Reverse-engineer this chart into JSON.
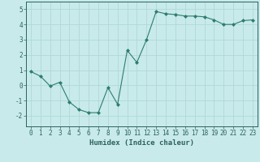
{
  "x": [
    0,
    1,
    2,
    3,
    4,
    5,
    6,
    7,
    8,
    9,
    10,
    11,
    12,
    13,
    14,
    15,
    16,
    17,
    18,
    19,
    20,
    21,
    22,
    23
  ],
  "y": [
    0.9,
    0.6,
    -0.05,
    0.2,
    -1.1,
    -1.6,
    -1.8,
    -1.8,
    -0.15,
    -1.25,
    2.3,
    1.5,
    3.0,
    4.85,
    4.7,
    4.65,
    4.55,
    4.55,
    4.5,
    4.3,
    4.0,
    4.0,
    4.25,
    4.3
  ],
  "line_color": "#2e7d6e",
  "marker": "D",
  "marker_size": 2.0,
  "bg_color": "#c8eaea",
  "grid_color": "#b0d8d8",
  "xlabel": "Humidex (Indice chaleur)",
  "xlim": [
    -0.5,
    23.5
  ],
  "ylim": [
    -2.7,
    5.5
  ],
  "yticks": [
    -2,
    -1,
    0,
    1,
    2,
    3,
    4,
    5
  ],
  "xticks": [
    0,
    1,
    2,
    3,
    4,
    5,
    6,
    7,
    8,
    9,
    10,
    11,
    12,
    13,
    14,
    15,
    16,
    17,
    18,
    19,
    20,
    21,
    22,
    23
  ],
  "font_color": "#2e6060",
  "tick_fontsize": 5.5,
  "label_fontsize": 6.5
}
